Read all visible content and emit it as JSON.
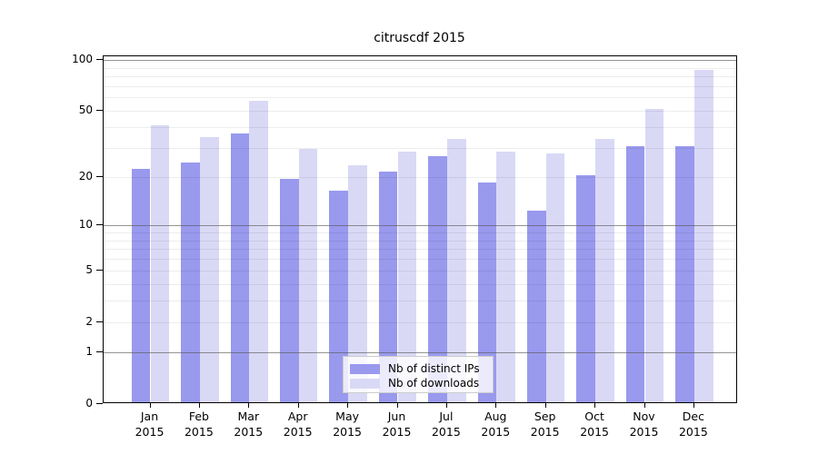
{
  "chart_data": {
    "type": "bar",
    "title": "citruscdf 2015",
    "xlabel": "",
    "ylabel": "",
    "scale": "log10(value+1)",
    "ylim": [
      0,
      107
    ],
    "grid": true,
    "background": "#ffffff",
    "categories": [
      "Jan",
      "Feb",
      "Mar",
      "Apr",
      "May",
      "Jun",
      "Jul",
      "Aug",
      "Sep",
      "Oct",
      "Nov",
      "Dec"
    ],
    "year": "2015",
    "y_tick_labels": [
      "0",
      "1",
      "2",
      "5",
      "10",
      "20",
      "50",
      "100"
    ],
    "y_tick_values": [
      0,
      1,
      2,
      5,
      10,
      20,
      50,
      100
    ],
    "major_gridline_values": [
      1,
      10,
      100
    ],
    "minor_gridline_values": [
      2,
      3,
      4,
      5,
      6,
      7,
      8,
      9,
      20,
      30,
      40,
      50,
      60,
      70,
      80,
      90
    ],
    "series": [
      {
        "name": "Nb of distinct IPs",
        "color": "#9999ee",
        "values": [
          22,
          24,
          36,
          19,
          16,
          21,
          26,
          18,
          12,
          20,
          30,
          30
        ]
      },
      {
        "name": "Nb of downloads",
        "color": "#d9d9f6",
        "values": [
          40,
          34,
          56,
          29,
          23,
          28,
          33,
          28,
          27,
          33,
          50,
          85
        ]
      }
    ],
    "legend": {
      "position": "bottom-center"
    }
  }
}
